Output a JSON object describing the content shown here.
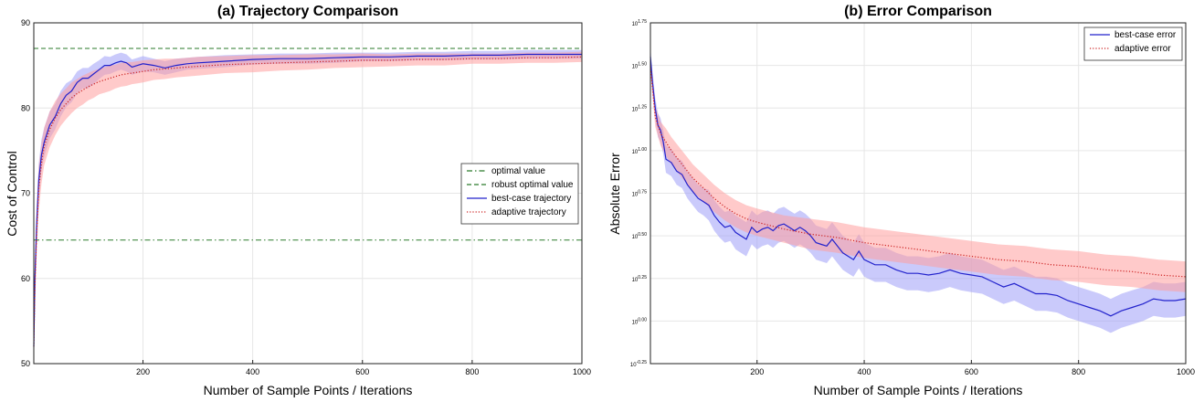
{
  "chart_data": [
    {
      "type": "line",
      "title": "(a) Trajectory Comparison",
      "xlabel": "Number of Sample Points / Iterations",
      "ylabel": "Cost of Control",
      "xlim": [
        1,
        1000
      ],
      "ylim": [
        50,
        90
      ],
      "xticks": [
        200,
        400,
        600,
        800,
        1000
      ],
      "yticks": [
        50,
        60,
        70,
        80,
        90
      ],
      "grid": true,
      "legend_position": "center-right",
      "hlines": [
        {
          "name": "optimal value",
          "y": 64.5,
          "style": "dashdot",
          "color": "#2a7a2a"
        },
        {
          "name": "robust optimal value",
          "y": 87.0,
          "style": "dashed",
          "color": "#2a7a2a"
        }
      ],
      "series": [
        {
          "name": "best-case trajectory",
          "style": "solid",
          "color": "#2222cc",
          "band_color": "#9e9ef7",
          "x": [
            1,
            3,
            6,
            10,
            15,
            20,
            30,
            40,
            50,
            60,
            70,
            80,
            90,
            100,
            110,
            120,
            130,
            140,
            150,
            160,
            170,
            180,
            190,
            200,
            220,
            240,
            260,
            280,
            300,
            350,
            400,
            450,
            500,
            550,
            600,
            650,
            700,
            750,
            800,
            850,
            900,
            950,
            1000
          ],
          "y": [
            52.0,
            60.0,
            66.0,
            71.5,
            74.5,
            76.0,
            78.0,
            79.0,
            80.5,
            81.5,
            82.0,
            83.0,
            83.5,
            83.5,
            84.0,
            84.5,
            85.0,
            85.0,
            85.3,
            85.5,
            85.3,
            84.8,
            85.0,
            85.2,
            85.0,
            84.7,
            85.0,
            85.2,
            85.3,
            85.5,
            85.7,
            85.8,
            85.8,
            85.9,
            86.0,
            86.0,
            86.1,
            86.1,
            86.2,
            86.2,
            86.3,
            86.3,
            86.3
          ],
          "band_half_width": [
            0.5,
            2.0,
            2.2,
            2.0,
            1.8,
            1.7,
            1.6,
            1.5,
            1.5,
            1.4,
            1.3,
            1.3,
            1.2,
            1.2,
            1.2,
            1.1,
            1.1,
            1.0,
            1.0,
            1.0,
            1.0,
            0.9,
            0.9,
            0.9,
            0.8,
            0.8,
            0.8,
            0.7,
            0.7,
            0.7,
            0.6,
            0.6,
            0.6,
            0.6,
            0.5,
            0.5,
            0.5,
            0.5,
            0.5,
            0.5,
            0.5,
            0.5,
            0.5
          ]
        },
        {
          "name": "adaptive trajectory",
          "style": "dotted",
          "color": "#cc2222",
          "band_color": "#ff9f9f",
          "x": [
            1,
            3,
            6,
            10,
            15,
            20,
            30,
            40,
            50,
            60,
            70,
            80,
            90,
            100,
            110,
            120,
            130,
            140,
            150,
            160,
            170,
            180,
            190,
            200,
            220,
            240,
            260,
            280,
            300,
            350,
            400,
            450,
            500,
            550,
            600,
            650,
            700,
            750,
            800,
            850,
            900,
            950,
            1000
          ],
          "y": [
            52.0,
            59.0,
            65.0,
            70.5,
            73.5,
            75.5,
            77.5,
            78.8,
            79.8,
            80.5,
            81.2,
            81.7,
            82.1,
            82.5,
            82.8,
            83.1,
            83.3,
            83.5,
            83.7,
            83.9,
            84.0,
            84.1,
            84.2,
            84.3,
            84.5,
            84.6,
            84.7,
            84.8,
            84.9,
            85.1,
            85.2,
            85.3,
            85.4,
            85.5,
            85.6,
            85.6,
            85.7,
            85.7,
            85.8,
            85.8,
            85.9,
            85.9,
            86.0
          ],
          "band_half_width": [
            0.5,
            2.8,
            2.8,
            2.6,
            2.4,
            2.2,
            2.1,
            2.0,
            1.9,
            1.8,
            1.8,
            1.7,
            1.7,
            1.6,
            1.6,
            1.5,
            1.5,
            1.5,
            1.4,
            1.4,
            1.4,
            1.3,
            1.3,
            1.3,
            1.2,
            1.2,
            1.1,
            1.1,
            1.1,
            1.0,
            1.0,
            0.9,
            0.9,
            0.8,
            0.8,
            0.7,
            0.7,
            0.7,
            0.6,
            0.6,
            0.6,
            0.6,
            0.6
          ]
        }
      ]
    },
    {
      "type": "line",
      "title": "(b) Error Comparison",
      "xlabel": "Number of Sample Points / Iterations",
      "ylabel": "Absolute Error",
      "yscale": "log10",
      "xlim": [
        1,
        1000
      ],
      "ylim_log10": [
        -0.25,
        1.75
      ],
      "xticks": [
        200,
        400,
        600,
        800,
        1000
      ],
      "ytick_labels": [
        {
          "base": "10",
          "exp": "-0.25",
          "value": -0.25
        },
        {
          "base": "10",
          "exp": "0.00",
          "value": 0.0
        },
        {
          "base": "10",
          "exp": "0.25",
          "value": 0.25
        },
        {
          "base": "10",
          "exp": "0.50",
          "value": 0.5
        },
        {
          "base": "10",
          "exp": "0.75",
          "value": 0.75
        },
        {
          "base": "10",
          "exp": "1.00",
          "value": 1.0
        },
        {
          "base": "10",
          "exp": "1.25",
          "value": 1.25
        },
        {
          "base": "10",
          "exp": "1.50",
          "value": 1.5
        },
        {
          "base": "10",
          "exp": "1.75",
          "value": 1.75
        }
      ],
      "grid": true,
      "legend_position": "top-right",
      "series": [
        {
          "name": "best-case error",
          "style": "solid",
          "color": "#2222cc",
          "band_color": "#9e9ef7",
          "x": [
            1,
            5,
            10,
            15,
            20,
            25,
            30,
            40,
            50,
            60,
            70,
            80,
            90,
            100,
            110,
            120,
            130,
            140,
            150,
            160,
            170,
            180,
            190,
            200,
            210,
            220,
            230,
            240,
            250,
            260,
            270,
            280,
            290,
            300,
            310,
            320,
            330,
            340,
            350,
            360,
            370,
            380,
            390,
            400,
            420,
            440,
            460,
            480,
            500,
            520,
            540,
            560,
            580,
            600,
            620,
            640,
            660,
            680,
            700,
            720,
            740,
            760,
            780,
            800,
            820,
            840,
            860,
            880,
            900,
            920,
            940,
            960,
            980,
            1000
          ],
          "y": [
            1.55,
            1.4,
            1.25,
            1.15,
            1.12,
            1.05,
            0.95,
            0.93,
            0.88,
            0.86,
            0.8,
            0.76,
            0.72,
            0.7,
            0.68,
            0.62,
            0.58,
            0.55,
            0.56,
            0.52,
            0.5,
            0.48,
            0.55,
            0.52,
            0.54,
            0.55,
            0.53,
            0.56,
            0.57,
            0.55,
            0.53,
            0.55,
            0.53,
            0.5,
            0.46,
            0.45,
            0.44,
            0.48,
            0.44,
            0.4,
            0.38,
            0.36,
            0.41,
            0.36,
            0.33,
            0.33,
            0.3,
            0.28,
            0.28,
            0.27,
            0.28,
            0.3,
            0.28,
            0.27,
            0.26,
            0.23,
            0.2,
            0.22,
            0.19,
            0.16,
            0.16,
            0.15,
            0.12,
            0.1,
            0.08,
            0.06,
            0.03,
            0.06,
            0.08,
            0.1,
            0.13,
            0.12,
            0.12,
            0.13
          ],
          "band_half_width": [
            0.06,
            0.06,
            0.06,
            0.07,
            0.07,
            0.07,
            0.08,
            0.08,
            0.08,
            0.08,
            0.08,
            0.08,
            0.08,
            0.08,
            0.09,
            0.09,
            0.09,
            0.09,
            0.09,
            0.1,
            0.1,
            0.1,
            0.1,
            0.1,
            0.1,
            0.1,
            0.1,
            0.1,
            0.1,
            0.1,
            0.1,
            0.1,
            0.1,
            0.1,
            0.1,
            0.1,
            0.1,
            0.1,
            0.1,
            0.1,
            0.1,
            0.1,
            0.1,
            0.1,
            0.1,
            0.1,
            0.1,
            0.1,
            0.1,
            0.1,
            0.1,
            0.1,
            0.1,
            0.1,
            0.1,
            0.1,
            0.1,
            0.1,
            0.1,
            0.1,
            0.1,
            0.1,
            0.1,
            0.1,
            0.1,
            0.1,
            0.1,
            0.1,
            0.1,
            0.1,
            0.1,
            0.1,
            0.1,
            0.1
          ]
        },
        {
          "name": "adaptive error",
          "style": "dotted",
          "color": "#cc2222",
          "band_color": "#ff9f9f",
          "x": [
            1,
            10,
            20,
            30,
            40,
            50,
            60,
            70,
            80,
            90,
            100,
            120,
            140,
            160,
            180,
            200,
            250,
            300,
            350,
            400,
            450,
            500,
            550,
            600,
            650,
            700,
            750,
            800,
            850,
            900,
            950,
            1000
          ],
          "y": [
            1.5,
            1.2,
            1.1,
            1.05,
            1.0,
            0.96,
            0.92,
            0.88,
            0.84,
            0.81,
            0.78,
            0.72,
            0.67,
            0.63,
            0.6,
            0.58,
            0.54,
            0.51,
            0.49,
            0.46,
            0.44,
            0.42,
            0.4,
            0.38,
            0.36,
            0.35,
            0.33,
            0.32,
            0.3,
            0.29,
            0.27,
            0.26
          ],
          "band_half_width": [
            0.04,
            0.06,
            0.07,
            0.08,
            0.08,
            0.08,
            0.08,
            0.08,
            0.08,
            0.08,
            0.08,
            0.08,
            0.08,
            0.08,
            0.08,
            0.08,
            0.08,
            0.09,
            0.09,
            0.09,
            0.09,
            0.09,
            0.09,
            0.09,
            0.09,
            0.09,
            0.09,
            0.09,
            0.09,
            0.09,
            0.09,
            0.09
          ]
        }
      ]
    }
  ]
}
